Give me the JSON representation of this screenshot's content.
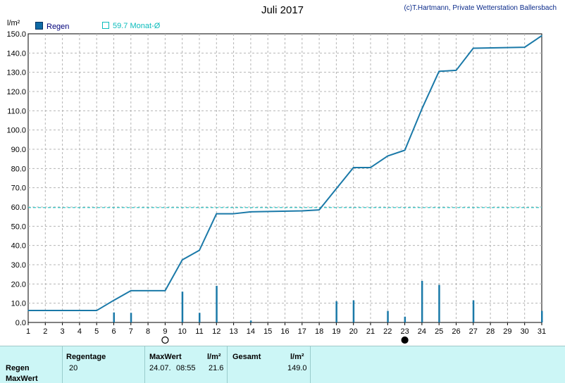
{
  "header": {
    "title": "Juli 2017",
    "credit": "(c)T.Hartmann, Private Wetterstation Ballersbach",
    "unit": "l/m²"
  },
  "legend": {
    "regen_label": "Regen",
    "month_label": "59.7 Monat-Ø"
  },
  "colors": {
    "line": "#1a79a8",
    "bars": "#1a79a8",
    "avg_line": "#1ec0c0",
    "grid": "#b4b4b4",
    "stats_bg": "#ccf6f6"
  },
  "moon_icons": [
    {
      "name": "new-moon-icon",
      "day": 9
    },
    {
      "name": "full-moon-icon",
      "day": 23
    }
  ],
  "chart_data": {
    "type": "line",
    "title": "Juli 2017",
    "ylabel": "l/m²",
    "ylim": [
      0,
      150
    ],
    "xlim": [
      1,
      31
    ],
    "yticks": [
      0,
      10,
      20,
      30,
      40,
      50,
      60,
      70,
      80,
      90,
      100,
      110,
      120,
      130,
      140,
      150
    ],
    "ytick_labels": [
      "0.0",
      "10.0",
      "20.0",
      "30.0",
      "40.0",
      "50.0",
      "60.0",
      "70.0",
      "80.0",
      "90.0",
      "100.0",
      "110.0",
      "120.0",
      "130.0",
      "140.0",
      "150.0"
    ],
    "xticks": [
      1,
      2,
      3,
      4,
      5,
      6,
      7,
      8,
      9,
      10,
      11,
      12,
      13,
      14,
      15,
      16,
      17,
      18,
      19,
      20,
      21,
      22,
      23,
      24,
      25,
      26,
      27,
      28,
      29,
      30,
      31
    ],
    "grid": true,
    "monthly_average": 59.7,
    "series": [
      {
        "name": "Regen",
        "type": "line",
        "x": [
          1,
          5,
          6,
          7,
          9,
          10,
          11,
          12,
          13,
          14,
          17,
          18,
          19,
          20,
          21,
          22,
          23,
          24,
          25,
          26,
          27,
          30,
          31
        ],
        "y": [
          6.2,
          6.2,
          11.5,
          16.5,
          16.5,
          32.5,
          37.5,
          56.5,
          56.5,
          57.5,
          58.0,
          58.5,
          69.5,
          80.5,
          80.5,
          86.5,
          89.5,
          111.0,
          130.5,
          131.0,
          142.5,
          143.0,
          149.0
        ]
      },
      {
        "name": "Regen",
        "type": "bar",
        "x": [
          6,
          7,
          10,
          11,
          12,
          14,
          19,
          20,
          22,
          23,
          24,
          25,
          27,
          31
        ],
        "y": [
          5.2,
          5.0,
          16.0,
          5.0,
          19.0,
          1.0,
          11.0,
          11.5,
          6.0,
          3.0,
          21.6,
          19.5,
          11.5,
          6.0
        ]
      }
    ]
  },
  "stats": {
    "row_regen": "Regen",
    "row_maxwert": "MaxWert",
    "col_regentage": "Regentage",
    "col_maxwert": "MaxWert",
    "col_maxunit": "l/m²",
    "col_gesamt": "Gesamt",
    "col_gesamt_unit": "l/m²",
    "regentage": "20",
    "max_date": "24.07.",
    "max_time": "08:55",
    "max_value": "21.6",
    "gesamt": "149.0"
  }
}
